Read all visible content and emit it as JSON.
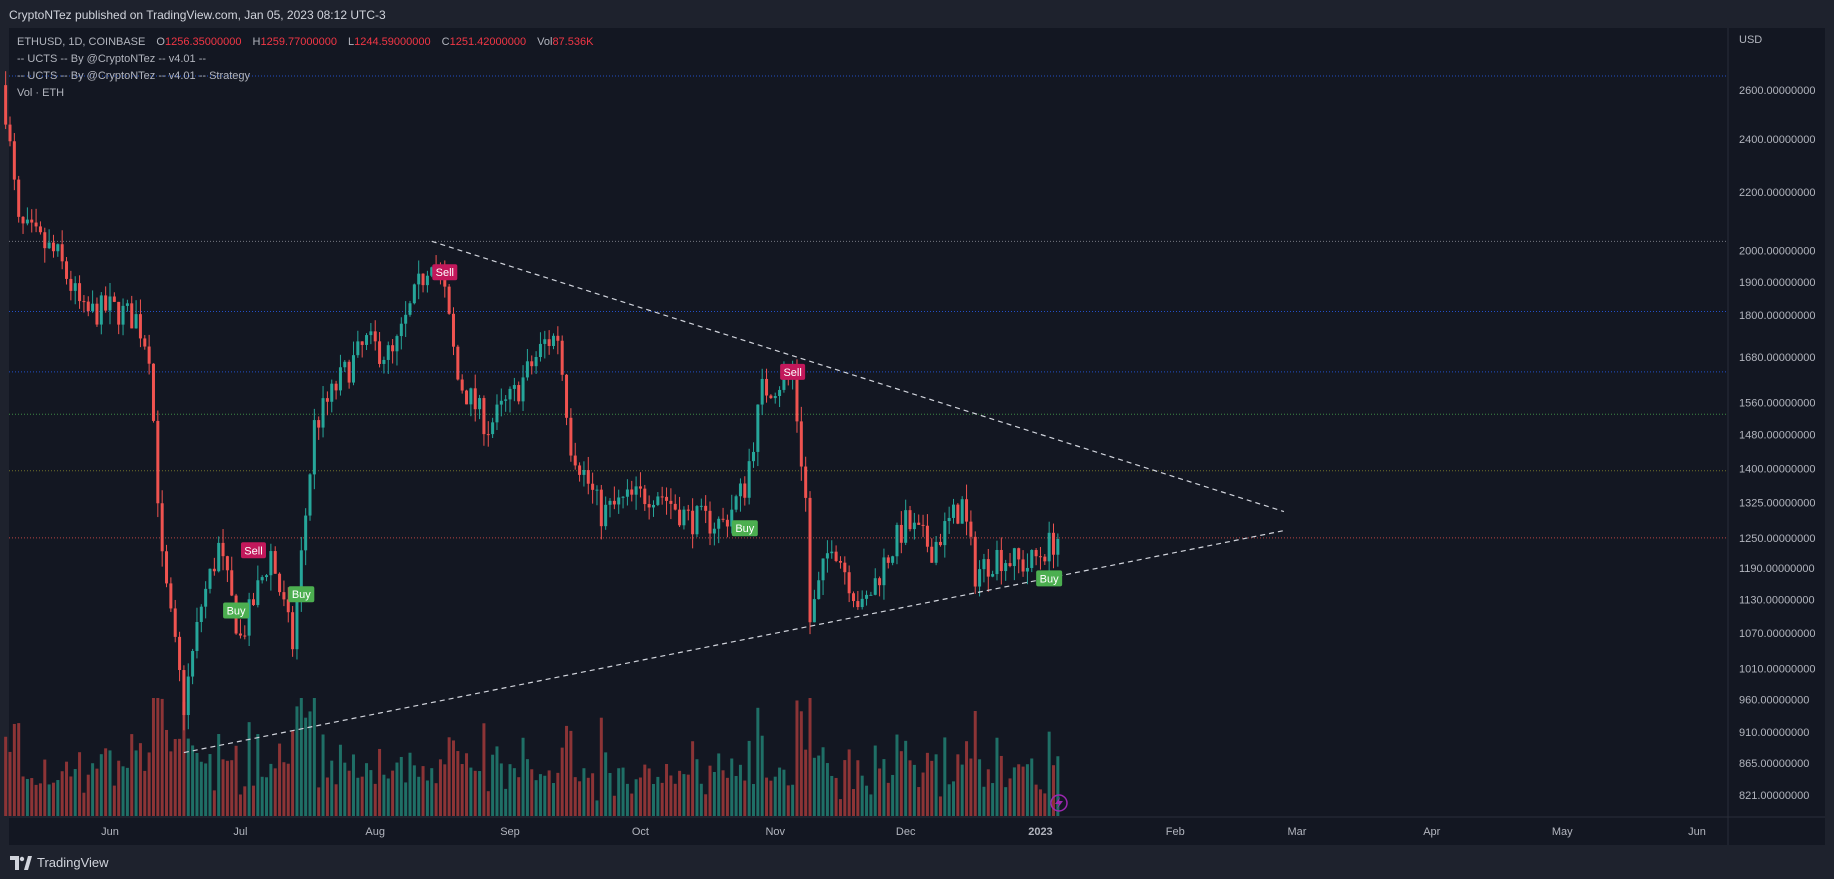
{
  "header": {
    "publisher_line": "CryptoNTez published on TradingView.com, Jan 05, 2023 08:12 UTC-3"
  },
  "legend": {
    "symbol": "ETHUSD, 1D, COINBASE",
    "open_label": "O",
    "open": "1256.35000000",
    "high_label": "H",
    "high": "1259.77000000",
    "low_label": "L",
    "low": "1244.59000000",
    "close_label": "C",
    "close": "1251.42000000",
    "vol_label": "Vol",
    "vol": "87.536K",
    "indicator1": "-- UCTS -- By @CryptoNTez -- v4.01 --",
    "indicator2": "-- UCTS -- By @CryptoNTez -- v4.01 -- Strategy",
    "indicator3": "Vol · ETH"
  },
  "price_axis": {
    "unit": "USD"
  },
  "footer": {
    "brand": "TradingView"
  },
  "colors": {
    "up": "#26a69a",
    "down": "#ef5350",
    "up_vol": "#1f6f66",
    "down_vol": "#8c3436",
    "buy": "#4caf50",
    "sell": "#c2185b",
    "background": "#131722"
  },
  "chart_data": {
    "type": "candlestick",
    "symbol": "ETHUSD",
    "timeframe": "1D",
    "y_scale": "log",
    "ylim": [
      790,
      2700
    ],
    "y_ticks": [
      "2600.00000000",
      "2400.00000000",
      "2200.00000000",
      "2000.00000000",
      "1900.00000000",
      "1800.00000000",
      "1680.00000000",
      "1560.00000000",
      "1480.00000000",
      "1400.00000000",
      "1325.00000000",
      "1250.00000000",
      "1190.00000000",
      "1130.00000000",
      "1070.00000000",
      "1010.00000000",
      "960.00000000",
      "910.00000000",
      "865.00000000",
      "821.00000000"
    ],
    "x_ticks": [
      {
        "label": "Jun",
        "date": "2022-06-01"
      },
      {
        "label": "Jul",
        "date": "2022-07-01"
      },
      {
        "label": "Aug",
        "date": "2022-08-01"
      },
      {
        "label": "Sep",
        "date": "2022-09-01"
      },
      {
        "label": "Oct",
        "date": "2022-10-01"
      },
      {
        "label": "Nov",
        "date": "2022-11-01"
      },
      {
        "label": "Dec",
        "date": "2022-12-01"
      },
      {
        "label": "2023",
        "date": "2023-01-01"
      },
      {
        "label": "Feb",
        "date": "2023-02-01"
      },
      {
        "label": "Mar",
        "date": "2023-03-01"
      },
      {
        "label": "Apr",
        "date": "2023-04-01"
      },
      {
        "label": "May",
        "date": "2023-05-01"
      },
      {
        "label": "Jun",
        "date": "2023-06-01"
      }
    ],
    "price_path": [
      {
        "date": "2022-05-08",
        "close": 2520
      },
      {
        "date": "2022-05-11",
        "close": 2080
      },
      {
        "date": "2022-05-14",
        "close": 2050
      },
      {
        "date": "2022-05-20",
        "close": 1980
      },
      {
        "date": "2022-05-26",
        "close": 1800
      },
      {
        "date": "2022-06-01",
        "close": 1820
      },
      {
        "date": "2022-06-07",
        "close": 1790
      },
      {
        "date": "2022-06-10",
        "close": 1700
      },
      {
        "date": "2022-06-13",
        "close": 1200
      },
      {
        "date": "2022-06-18",
        "close": 950
      },
      {
        "date": "2022-06-22",
        "close": 1120
      },
      {
        "date": "2022-06-26",
        "close": 1230
      },
      {
        "date": "2022-07-01",
        "close": 1060
      },
      {
        "date": "2022-07-08",
        "close": 1220
      },
      {
        "date": "2022-07-13",
        "close": 1050
      },
      {
        "date": "2022-07-18",
        "close": 1500
      },
      {
        "date": "2022-07-24",
        "close": 1620
      },
      {
        "date": "2022-07-30",
        "close": 1720
      },
      {
        "date": "2022-08-05",
        "close": 1680
      },
      {
        "date": "2022-08-10",
        "close": 1850
      },
      {
        "date": "2022-08-14",
        "close": 1990
      },
      {
        "date": "2022-08-17",
        "close": 1860
      },
      {
        "date": "2022-08-20",
        "close": 1620
      },
      {
        "date": "2022-08-27",
        "close": 1500
      },
      {
        "date": "2022-09-02",
        "close": 1580
      },
      {
        "date": "2022-09-09",
        "close": 1720
      },
      {
        "date": "2022-09-12",
        "close": 1740
      },
      {
        "date": "2022-09-15",
        "close": 1460
      },
      {
        "date": "2022-09-22",
        "close": 1300
      },
      {
        "date": "2022-09-28",
        "close": 1330
      },
      {
        "date": "2022-10-05",
        "close": 1350
      },
      {
        "date": "2022-10-12",
        "close": 1290
      },
      {
        "date": "2022-10-20",
        "close": 1280
      },
      {
        "date": "2022-10-25",
        "close": 1360
      },
      {
        "date": "2022-10-29",
        "close": 1590
      },
      {
        "date": "2022-11-05",
        "close": 1630
      },
      {
        "date": "2022-11-08",
        "close": 1330
      },
      {
        "date": "2022-11-09",
        "close": 1090
      },
      {
        "date": "2022-11-14",
        "close": 1250
      },
      {
        "date": "2022-11-21",
        "close": 1110
      },
      {
        "date": "2022-11-26",
        "close": 1200
      },
      {
        "date": "2022-12-01",
        "close": 1280
      },
      {
        "date": "2022-12-07",
        "close": 1230
      },
      {
        "date": "2022-12-14",
        "close": 1320
      },
      {
        "date": "2022-12-17",
        "close": 1180
      },
      {
        "date": "2022-12-22",
        "close": 1215
      },
      {
        "date": "2022-12-29",
        "close": 1195
      },
      {
        "date": "2023-01-05",
        "close": 1251
      }
    ],
    "signals": [
      {
        "label": "Sell",
        "date": "2022-07-04",
        "price": 1225
      },
      {
        "label": "Buy",
        "date": "2022-06-30",
        "price": 1110
      },
      {
        "label": "Buy",
        "date": "2022-07-15",
        "price": 1140
      },
      {
        "label": "Sell",
        "date": "2022-08-17",
        "price": 1930
      },
      {
        "label": "Buy",
        "date": "2022-10-25",
        "price": 1270
      },
      {
        "label": "Sell",
        "date": "2022-11-05",
        "price": 1640
      },
      {
        "label": "Buy",
        "date": "2023-01-03",
        "price": 1170
      }
    ],
    "trendlines": [
      {
        "from": {
          "date": "2022-08-14",
          "price": 2030
        },
        "to": {
          "date": "2023-02-26",
          "price": 1305
        }
      },
      {
        "from": {
          "date": "2022-06-18",
          "price": 880
        },
        "to": {
          "date": "2023-02-26",
          "price": 1265
        }
      }
    ],
    "horizontal_levels": [
      {
        "price": 2660,
        "color": "#2962ff"
      },
      {
        "price": 2030,
        "color": "#9598a1"
      },
      {
        "price": 1810,
        "color": "#2962ff"
      },
      {
        "price": 1640,
        "color": "#2962ff"
      },
      {
        "price": 1530,
        "color": "#4caf50"
      },
      {
        "price": 1395,
        "color": "#8d8d2e"
      },
      {
        "price": 1250,
        "color": "#ef5350"
      }
    ]
  }
}
